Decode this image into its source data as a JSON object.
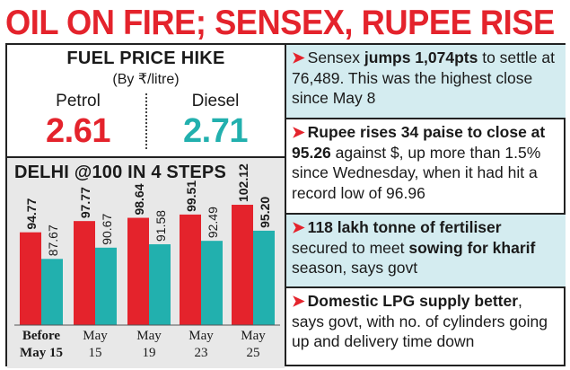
{
  "headline": "OIL ON FIRE; SENSEX, RUPEE RISE",
  "fuel": {
    "title": "FUEL PRICE HIKE",
    "subtitle": "(By ₹/litre)",
    "petrol_label": "Petrol",
    "petrol_value": "2.61",
    "diesel_label": "Diesel",
    "diesel_value": "2.71"
  },
  "chart_data": {
    "type": "bar",
    "title": "DELHI @100 IN 4 STEPS",
    "categories": [
      "Before May 15",
      "May 15",
      "May 19",
      "May 23",
      "May 25"
    ],
    "category_lines": [
      [
        "Before",
        "May 15"
      ],
      [
        "May",
        "15"
      ],
      [
        "May",
        "19"
      ],
      [
        "May",
        "23"
      ],
      [
        "May",
        "25"
      ]
    ],
    "series": [
      {
        "values": [
          94.77,
          97.77,
          98.64,
          99.51,
          102.12
        ],
        "color": "#e4232c"
      },
      {
        "values": [
          87.67,
          90.67,
          91.58,
          92.49,
          95.2
        ],
        "color": "#22b0ae"
      }
    ],
    "value_labels": [
      [
        "94.77",
        "97.77",
        "98.64",
        "99.51",
        "102.12"
      ],
      [
        "87.67",
        "90.67",
        "91.58",
        "92.49",
        "95.20"
      ]
    ],
    "ylim": [
      70,
      105
    ],
    "grid": false,
    "xlabel": "",
    "ylabel": ""
  },
  "items": [
    {
      "parts": [
        {
          "text": "Sensex ",
          "bold": false
        },
        {
          "text": "jumps 1,074pts",
          "bold": true
        },
        {
          "text": " to settle at 76,489. This was the highest close since May 8",
          "bold": false
        }
      ]
    },
    {
      "parts": [
        {
          "text": "Rupee rises 34 paise to close at 95.26",
          "bold": true
        },
        {
          "text": " against $, up more than 1.5% since Wednesday, when it had hit a record low of 96.96",
          "bold": false
        }
      ]
    },
    {
      "parts": [
        {
          "text": "118 lakh tonne of fertiliser",
          "bold": true
        },
        {
          "text": " secured to meet ",
          "bold": false
        },
        {
          "text": "sowing for kharif",
          "bold": true
        },
        {
          "text": " season, says govt",
          "bold": false
        }
      ]
    },
    {
      "parts": [
        {
          "text": "Domestic LPG supply better",
          "bold": true
        },
        {
          "text": ", says govt, with no. of cylinders going up and delivery time down",
          "bold": false
        }
      ]
    }
  ],
  "arrow_glyph": "➤",
  "colors": {
    "accent_red": "#e4232c",
    "accent_teal": "#22b0ae",
    "shade_blue": "#d4ecf0",
    "chart_bg": "#e8e8e8"
  }
}
